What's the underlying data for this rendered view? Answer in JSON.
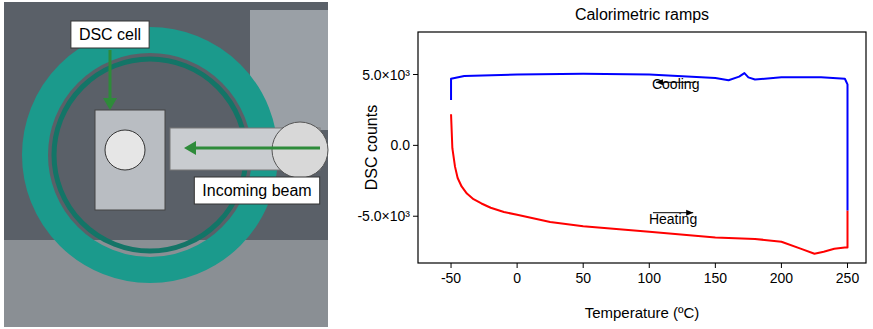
{
  "photo": {
    "labels": [
      "DSC cell",
      "Incoming beam"
    ]
  },
  "chart_data": {
    "type": "line",
    "title": "Calorimetric ramps",
    "x_label": "Temperature (ºC)",
    "y_label": "DSC counts",
    "xlim": [
      -75,
      264
    ],
    "ylim": [
      -8300,
      8000
    ],
    "xticks": [
      -50,
      0,
      50,
      100,
      150,
      200,
      250
    ],
    "yticks": [
      {
        "value": -5000,
        "label": "-5.0×10³"
      },
      {
        "value": 0,
        "label": "0.0"
      },
      {
        "value": 5000,
        "label": "5.0×10³"
      }
    ],
    "grid": false,
    "series": [
      {
        "name": "Heating",
        "color": "#ff0000",
        "x": [
          -50,
          -49,
          -47,
          -45,
          -42,
          -38,
          -33,
          -27,
          -20,
          -10,
          0,
          25,
          50,
          100,
          150,
          180,
          200,
          215,
          225,
          232,
          240,
          248,
          250,
          250
        ],
        "values": [
          2200,
          -200,
          -1500,
          -2300,
          -2900,
          -3400,
          -3800,
          -4100,
          -4400,
          -4700,
          -4900,
          -5400,
          -5700,
          -6100,
          -6500,
          -6600,
          -6800,
          -7300,
          -7650,
          -7500,
          -7300,
          -7200,
          -7200,
          -4600
        ]
      },
      {
        "name": "Cooling",
        "color": "#0000ff",
        "x": [
          250,
          250,
          248,
          230,
          200,
          180,
          175,
          172,
          168,
          160,
          150,
          100,
          50,
          0,
          -40,
          -50,
          -50
        ],
        "values": [
          -4600,
          4300,
          4700,
          4800,
          4800,
          4650,
          4800,
          5100,
          4850,
          4600,
          4750,
          5000,
          5050,
          5000,
          4900,
          4700,
          3200
        ]
      }
    ]
  }
}
